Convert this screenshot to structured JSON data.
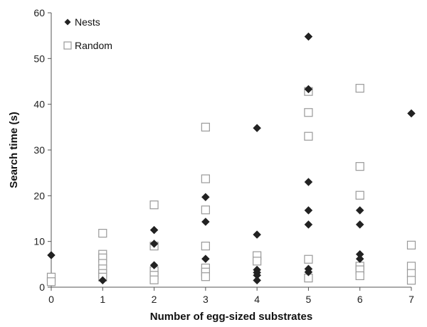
{
  "chart_data": {
    "type": "scatter",
    "xlabel": "Number of egg-sized substrates",
    "ylabel": "Search time (s)",
    "xlim": [
      0,
      7
    ],
    "ylim": [
      0,
      60
    ],
    "x_ticks": [
      0,
      1,
      2,
      3,
      4,
      5,
      6,
      7
    ],
    "y_ticks": [
      0,
      10,
      20,
      30,
      40,
      50,
      60
    ],
    "grid": false,
    "legend": {
      "placement": "top-left"
    },
    "series": [
      {
        "name": "Nests",
        "marker": "filled-diamond",
        "color": "#222222",
        "points": [
          [
            0,
            7.0
          ],
          [
            1,
            1.5
          ],
          [
            2,
            12.5
          ],
          [
            2,
            9.5
          ],
          [
            2,
            4.8
          ],
          [
            3,
            19.7
          ],
          [
            3,
            14.3
          ],
          [
            3,
            6.2
          ],
          [
            4,
            34.8
          ],
          [
            4,
            11.5
          ],
          [
            4,
            3.8
          ],
          [
            4,
            3.2
          ],
          [
            4,
            2.6
          ],
          [
            4,
            1.5
          ],
          [
            5,
            54.8
          ],
          [
            5,
            43.3
          ],
          [
            5,
            23.0
          ],
          [
            5,
            16.8
          ],
          [
            5,
            13.7
          ],
          [
            5,
            4.0
          ],
          [
            5,
            3.3
          ],
          [
            6,
            16.8
          ],
          [
            6,
            13.7
          ],
          [
            6,
            7.2
          ],
          [
            6,
            6.2
          ],
          [
            7,
            38.0
          ]
        ]
      },
      {
        "name": "Random",
        "marker": "open-square",
        "color": "#999999",
        "points": [
          [
            0,
            2.2
          ],
          [
            0,
            1.2
          ],
          [
            1,
            11.8
          ],
          [
            1,
            7.2
          ],
          [
            1,
            6.4
          ],
          [
            1,
            5.2
          ],
          [
            1,
            4.0
          ],
          [
            1,
            3.0
          ],
          [
            1,
            2.2
          ],
          [
            2,
            18.0
          ],
          [
            2,
            9.0
          ],
          [
            2,
            3.6
          ],
          [
            2,
            2.6
          ],
          [
            2,
            1.6
          ],
          [
            3,
            35.0
          ],
          [
            3,
            23.7
          ],
          [
            3,
            16.9
          ],
          [
            3,
            9.0
          ],
          [
            3,
            4.2
          ],
          [
            3,
            3.3
          ],
          [
            3,
            2.3
          ],
          [
            4,
            6.9
          ],
          [
            4,
            5.7
          ],
          [
            5,
            42.8
          ],
          [
            5,
            38.2
          ],
          [
            5,
            33.0
          ],
          [
            5,
            6.1
          ],
          [
            5,
            2.0
          ],
          [
            6,
            43.5
          ],
          [
            6,
            26.4
          ],
          [
            6,
            20.1
          ],
          [
            6,
            4.6
          ],
          [
            6,
            3.8
          ],
          [
            6,
            2.5
          ],
          [
            7,
            9.2
          ],
          [
            7,
            4.6
          ],
          [
            7,
            3.0
          ],
          [
            7,
            1.5
          ]
        ]
      }
    ]
  }
}
